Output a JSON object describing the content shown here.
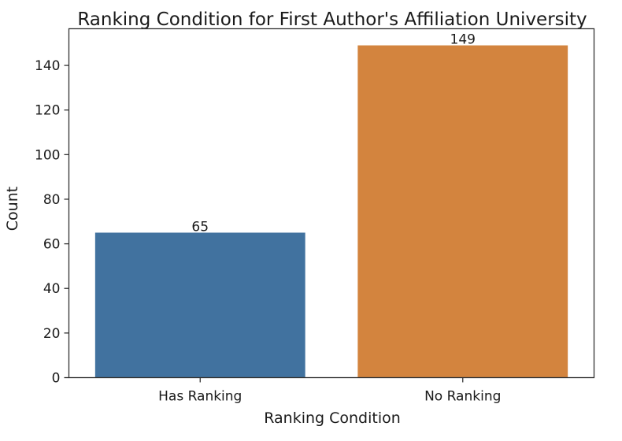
{
  "chart_data": {
    "type": "bar",
    "title": "Ranking Condition for First Author's Affiliation University",
    "xlabel": "Ranking Condition",
    "ylabel": "Count",
    "categories": [
      "Has Ranking",
      "No Ranking"
    ],
    "values": [
      65,
      149
    ],
    "data_labels": [
      "65",
      "149"
    ],
    "colors": [
      "#41729f",
      "#d3843e"
    ],
    "ylim": [
      0,
      156.45
    ],
    "yticks": [
      0,
      20,
      40,
      60,
      80,
      100,
      120,
      140
    ],
    "grid": false,
    "legend": "none"
  }
}
